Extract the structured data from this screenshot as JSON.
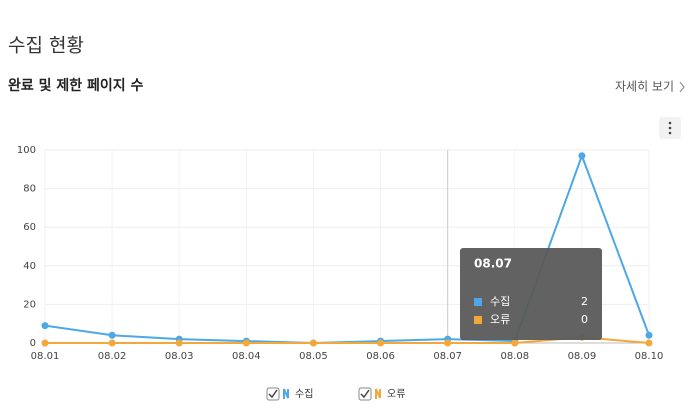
{
  "header": {
    "title": "수집 현황",
    "subtitle": "완료 및 제한 페이지 수",
    "link": "자세히 보기"
  },
  "chart_data": {
    "type": "line",
    "categories": [
      "08.01",
      "08.02",
      "08.03",
      "08.04",
      "08.05",
      "08.06",
      "08.07",
      "08.08",
      "08.09",
      "08.10"
    ],
    "series": [
      {
        "name": "수집",
        "color": "#4ea7e6",
        "values": [
          9,
          4,
          2,
          1,
          0,
          1,
          2,
          1,
          97,
          4
        ]
      },
      {
        "name": "오류",
        "color": "#f4a83a",
        "values": [
          0,
          0,
          0,
          0,
          0,
          0,
          0,
          0,
          3,
          0
        ]
      }
    ],
    "ylim": [
      0,
      100
    ],
    "yticks": [
      0,
      20,
      40,
      60,
      80,
      100
    ],
    "grid": true,
    "tooltip_index": 6
  }
}
